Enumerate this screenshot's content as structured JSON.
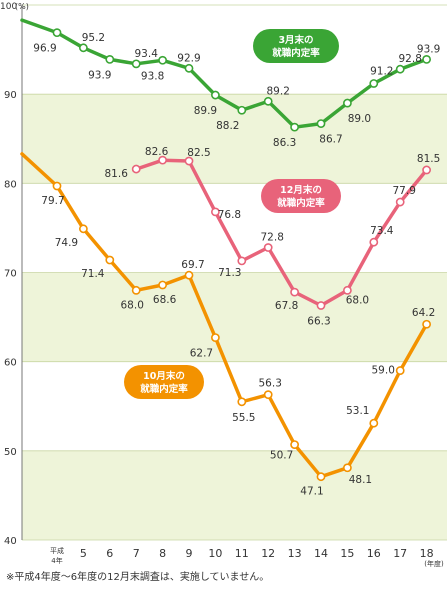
{
  "chart_data": {
    "type": "line",
    "y_unit": "(%)",
    "x_unit": "(年度)",
    "ylim": [
      40,
      100
    ],
    "yticks": [
      40,
      50,
      60,
      70,
      80,
      90,
      100
    ],
    "x_ticks": [
      {
        "x": 4,
        "lines": [
          "平成",
          "4年"
        ]
      },
      {
        "x": 5,
        "lines": [
          "5"
        ]
      },
      {
        "x": 6,
        "lines": [
          "6"
        ]
      },
      {
        "x": 7,
        "lines": [
          "7"
        ]
      },
      {
        "x": 8,
        "lines": [
          "8"
        ]
      },
      {
        "x": 9,
        "lines": [
          "9"
        ]
      },
      {
        "x": 10,
        "lines": [
          "10"
        ]
      },
      {
        "x": 11,
        "lines": [
          "11"
        ]
      },
      {
        "x": 12,
        "lines": [
          "12"
        ]
      },
      {
        "x": 13,
        "lines": [
          "13"
        ]
      },
      {
        "x": 14,
        "lines": [
          "14"
        ]
      },
      {
        "x": 15,
        "lines": [
          "15"
        ]
      },
      {
        "x": 16,
        "lines": [
          "16"
        ]
      },
      {
        "x": 17,
        "lines": [
          "17"
        ]
      },
      {
        "x": 18,
        "lines": [
          "18"
        ]
      }
    ],
    "series": [
      {
        "name_lines": [
          "3月末の",
          "就職内定率"
        ],
        "color": "#3aa535",
        "lead_in": 98.3,
        "x": [
          4,
          5,
          6,
          7,
          8,
          9,
          10,
          11,
          12,
          13,
          14,
          15,
          16,
          17,
          18
        ],
        "values": [
          96.9,
          95.2,
          93.9,
          93.4,
          93.8,
          92.9,
          89.9,
          88.2,
          89.2,
          86.3,
          86.7,
          89.0,
          91.2,
          92.8,
          93.9
        ]
      },
      {
        "name_lines": [
          "12月末の",
          "就職内定率"
        ],
        "color": "#e8637a",
        "x": [
          7,
          8,
          9,
          10,
          11,
          12,
          13,
          14,
          15,
          16,
          17,
          18
        ],
        "values": [
          81.6,
          82.6,
          82.5,
          76.8,
          71.3,
          72.8,
          67.8,
          66.3,
          68.0,
          73.4,
          77.9,
          81.5
        ]
      },
      {
        "name_lines": [
          "10月末の",
          "就職内定率"
        ],
        "color": "#f39200",
        "lead_in": 83.3,
        "x": [
          4,
          5,
          6,
          7,
          8,
          9,
          10,
          11,
          12,
          13,
          14,
          15,
          16,
          17,
          18
        ],
        "values": [
          79.7,
          74.9,
          71.4,
          68.0,
          68.6,
          69.7,
          62.7,
          55.5,
          56.3,
          50.7,
          47.1,
          48.1,
          53.1,
          59.0,
          64.2
        ]
      }
    ]
  },
  "footnote": "※平成4年度〜6年度の12月末調査は、実施していません。"
}
